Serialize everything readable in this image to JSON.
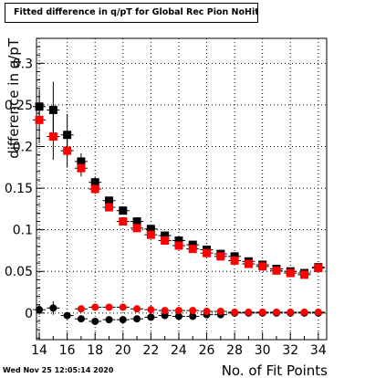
{
  "header": {
    "title": "Fitted difference in q/pT for Global Rec Pion NoHits"
  },
  "footer": {
    "timestamp": "Wed Nov 25 12:05:14 2020"
  },
  "chart_data": {
    "type": "scatter",
    "xlabel": "No. of Fit Points",
    "ylabel": "difference in q/pT",
    "xlim": [
      13.8,
      34.6
    ],
    "ylim": [
      -0.032,
      0.33
    ],
    "xticks": [
      14,
      16,
      18,
      20,
      22,
      24,
      26,
      28,
      30,
      32,
      34
    ],
    "yticks": [
      0,
      0.05,
      0.1,
      0.15,
      0.2,
      0.25,
      0.3
    ],
    "ytick_labels": [
      "0",
      "0.05",
      "0.1",
      "0.15",
      "0.2",
      "0.25",
      "0.3"
    ],
    "grid": true,
    "series": [
      {
        "marker": "square",
        "color": "#000000",
        "points": [
          {
            "x": 14,
            "y": 0.248,
            "err": 0.02
          },
          {
            "x": 15,
            "y": 0.244,
            "err": 0.034
          },
          {
            "x": 16,
            "y": 0.214,
            "err": 0.025
          },
          {
            "x": 17,
            "y": 0.182,
            "err": 0.01
          },
          {
            "x": 18,
            "y": 0.157,
            "err": 0.007
          },
          {
            "x": 19,
            "y": 0.135,
            "err": 0.004
          },
          {
            "x": 20,
            "y": 0.123,
            "err": 0.004
          },
          {
            "x": 21,
            "y": 0.11,
            "err": 0.003
          },
          {
            "x": 22,
            "y": 0.101,
            "err": 0.003
          },
          {
            "x": 23,
            "y": 0.093,
            "err": 0.002
          },
          {
            "x": 24,
            "y": 0.087,
            "err": 0.002
          },
          {
            "x": 25,
            "y": 0.082,
            "err": 0.002
          },
          {
            "x": 26,
            "y": 0.076,
            "err": 0.002
          },
          {
            "x": 27,
            "y": 0.071,
            "err": 0.002
          },
          {
            "x": 28,
            "y": 0.068,
            "err": 0.002
          },
          {
            "x": 29,
            "y": 0.062,
            "err": 0.002
          },
          {
            "x": 30,
            "y": 0.058,
            "err": 0.002
          },
          {
            "x": 31,
            "y": 0.053,
            "err": 0.002
          },
          {
            "x": 32,
            "y": 0.05,
            "err": 0.002
          },
          {
            "x": 33,
            "y": 0.048,
            "err": 0.002
          },
          {
            "x": 34,
            "y": 0.055,
            "err": 0.002
          }
        ]
      },
      {
        "marker": "square",
        "color": "#ff0000",
        "points": [
          {
            "x": 14,
            "y": 0.232,
            "err": 0.028
          },
          {
            "x": 15,
            "y": 0.212,
            "err": 0.028
          },
          {
            "x": 16,
            "y": 0.195,
            "err": 0.02
          },
          {
            "x": 17,
            "y": 0.174,
            "err": 0.01
          },
          {
            "x": 18,
            "y": 0.149,
            "err": 0.006
          },
          {
            "x": 19,
            "y": 0.127,
            "err": 0.004
          },
          {
            "x": 20,
            "y": 0.11,
            "err": 0.004
          },
          {
            "x": 21,
            "y": 0.102,
            "err": 0.003
          },
          {
            "x": 22,
            "y": 0.094,
            "err": 0.003
          },
          {
            "x": 23,
            "y": 0.087,
            "err": 0.002
          },
          {
            "x": 24,
            "y": 0.081,
            "err": 0.002
          },
          {
            "x": 25,
            "y": 0.077,
            "err": 0.002
          },
          {
            "x": 26,
            "y": 0.072,
            "err": 0.002
          },
          {
            "x": 27,
            "y": 0.068,
            "err": 0.002
          },
          {
            "x": 28,
            "y": 0.063,
            "err": 0.002
          },
          {
            "x": 29,
            "y": 0.059,
            "err": 0.002
          },
          {
            "x": 30,
            "y": 0.056,
            "err": 0.002
          },
          {
            "x": 31,
            "y": 0.051,
            "err": 0.002
          },
          {
            "x": 32,
            "y": 0.048,
            "err": 0.002
          },
          {
            "x": 33,
            "y": 0.046,
            "err": 0.002
          },
          {
            "x": 34,
            "y": 0.054,
            "err": 0.002
          }
        ]
      },
      {
        "marker": "circle",
        "color": "#000000",
        "points": [
          {
            "x": 14,
            "y": 0.004,
            "err": 0.006
          },
          {
            "x": 15,
            "y": 0.006,
            "err": 0.008
          },
          {
            "x": 16,
            "y": -0.003,
            "err": 0.004
          },
          {
            "x": 17,
            "y": -0.007,
            "err": 0.003
          },
          {
            "x": 18,
            "y": -0.01,
            "err": 0.003
          },
          {
            "x": 19,
            "y": -0.008,
            "err": 0.002
          },
          {
            "x": 20,
            "y": -0.008,
            "err": 0.002
          },
          {
            "x": 21,
            "y": -0.007,
            "err": 0.002
          },
          {
            "x": 22,
            "y": -0.005,
            "err": 0.002
          },
          {
            "x": 23,
            "y": -0.003,
            "err": 0.002
          },
          {
            "x": 24,
            "y": -0.004,
            "err": 0.002
          },
          {
            "x": 25,
            "y": -0.004,
            "err": 0.002
          },
          {
            "x": 26,
            "y": -0.002,
            "err": 0.002
          },
          {
            "x": 27,
            "y": -0.002,
            "err": 0.002
          },
          {
            "x": 28,
            "y": 0.0,
            "err": 0.002
          },
          {
            "x": 29,
            "y": 0.0,
            "err": 0.002
          },
          {
            "x": 30,
            "y": 0.0,
            "err": 0.002
          },
          {
            "x": 31,
            "y": 0.0,
            "err": 0.002
          },
          {
            "x": 32,
            "y": 0.0,
            "err": 0.002
          },
          {
            "x": 33,
            "y": 0.0,
            "err": 0.002
          },
          {
            "x": 34,
            "y": 0.0,
            "err": 0.002
          }
        ]
      },
      {
        "marker": "circle",
        "color": "#ff0000",
        "points": [
          {
            "x": 17,
            "y": 0.005,
            "err": 0.003
          },
          {
            "x": 18,
            "y": 0.007,
            "err": 0.003
          },
          {
            "x": 19,
            "y": 0.007,
            "err": 0.002
          },
          {
            "x": 20,
            "y": 0.007,
            "err": 0.002
          },
          {
            "x": 21,
            "y": 0.005,
            "err": 0.002
          },
          {
            "x": 22,
            "y": 0.004,
            "err": 0.002
          },
          {
            "x": 23,
            "y": 0.003,
            "err": 0.002
          },
          {
            "x": 24,
            "y": 0.003,
            "err": 0.002
          },
          {
            "x": 25,
            "y": 0.003,
            "err": 0.002
          },
          {
            "x": 26,
            "y": 0.002,
            "err": 0.002
          },
          {
            "x": 27,
            "y": 0.002,
            "err": 0.002
          },
          {
            "x": 28,
            "y": 0.001,
            "err": 0.002
          },
          {
            "x": 29,
            "y": 0.001,
            "err": 0.002
          },
          {
            "x": 30,
            "y": 0.001,
            "err": 0.002
          },
          {
            "x": 31,
            "y": 0.001,
            "err": 0.002
          },
          {
            "x": 32,
            "y": 0.001,
            "err": 0.002
          },
          {
            "x": 33,
            "y": 0.001,
            "err": 0.002
          },
          {
            "x": 34,
            "y": 0.001,
            "err": 0.002
          }
        ]
      }
    ]
  }
}
